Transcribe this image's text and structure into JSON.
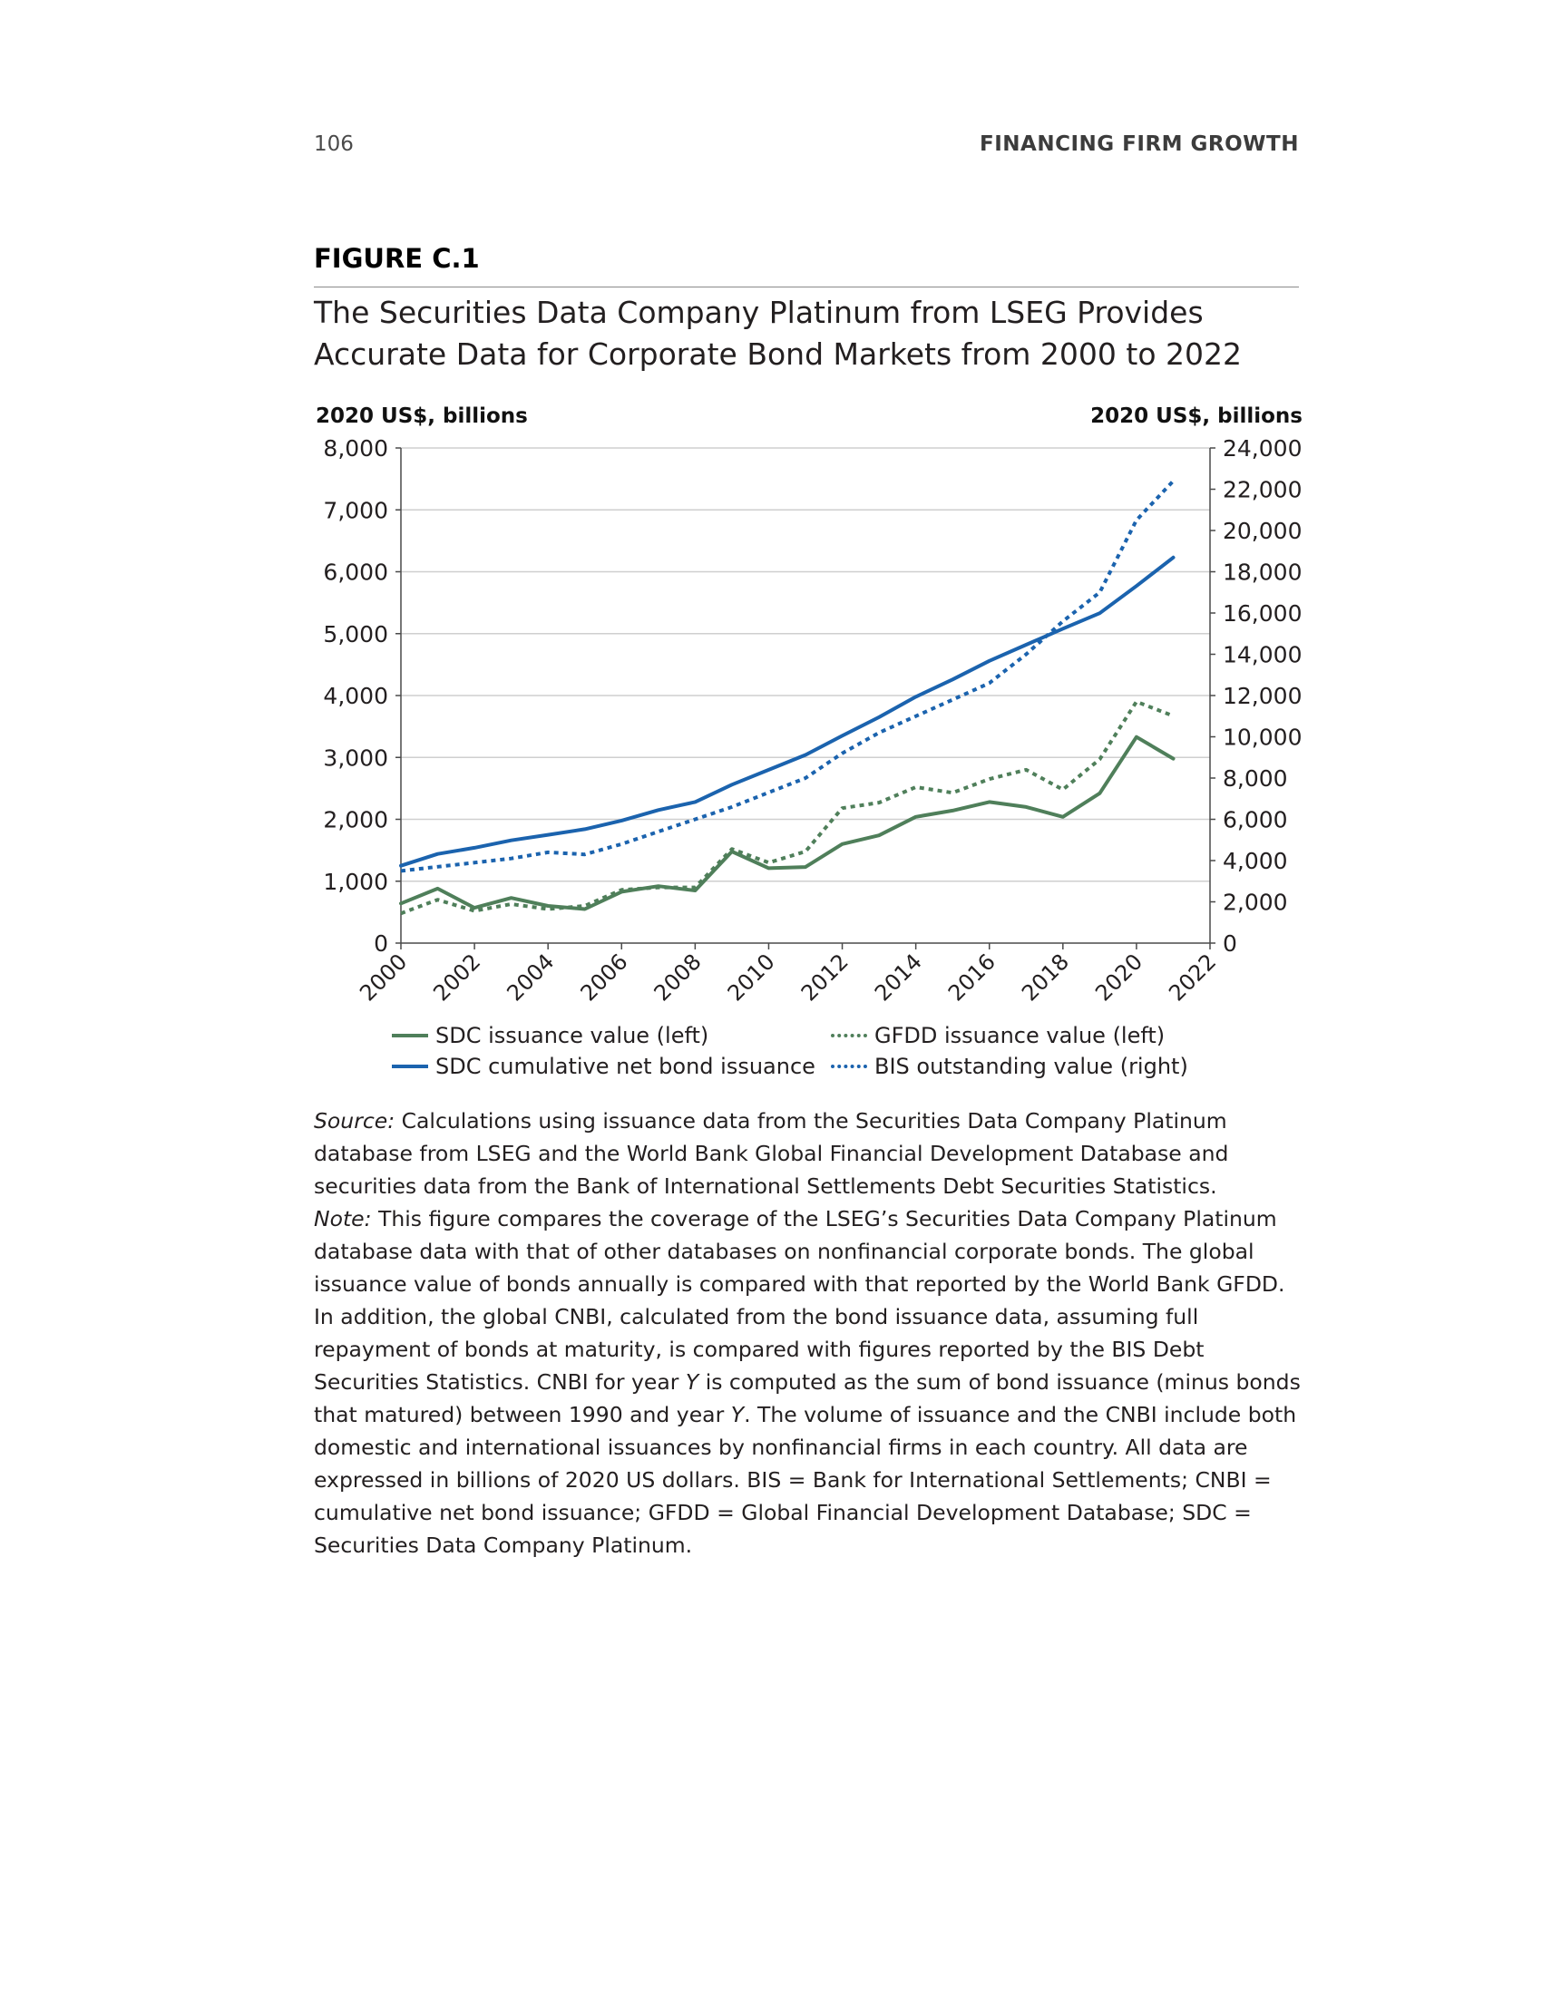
{
  "header": {
    "page_number": "106",
    "running_head": "FINANCING FIRM GROWTH"
  },
  "figure": {
    "label": "FIGURE C.1",
    "title_line1": "The Securities Data Company Platinum from LSEG Provides",
    "title_line2": "Accurate Data for Corporate Bond Markets from 2000 to 2022"
  },
  "colors": {
    "green": "#4f7f5a",
    "blue": "#1b63ae",
    "grid": "#cfcfcf",
    "axis": "#4a4a4a"
  },
  "chart_data": {
    "type": "line",
    "ylabel_left": "2020 US$, billions",
    "ylabel_right": "2020 US$, billions",
    "y_left_lim": [
      0,
      8000
    ],
    "y_right_lim": [
      0,
      24000
    ],
    "y_left_ticks": [
      0,
      1000,
      2000,
      3000,
      4000,
      5000,
      6000,
      7000,
      8000
    ],
    "y_left_tick_labels": [
      "0",
      "1,000",
      "2,000",
      "3,000",
      "4,000",
      "5,000",
      "6,000",
      "7,000",
      "8,000"
    ],
    "y_right_ticks": [
      0,
      2000,
      4000,
      6000,
      8000,
      10000,
      12000,
      14000,
      16000,
      18000,
      20000,
      22000,
      24000
    ],
    "y_right_tick_labels": [
      "0",
      "2,000",
      "4,000",
      "6,000",
      "8,000",
      "10,000",
      "12,000",
      "14,000",
      "16,000",
      "18,000",
      "20,000",
      "22,000",
      "24,000"
    ],
    "x_lim": [
      2000,
      2022
    ],
    "x_ticks": [
      2000,
      2002,
      2004,
      2006,
      2008,
      2010,
      2012,
      2014,
      2016,
      2018,
      2020,
      2022
    ],
    "x_tick_labels": [
      "2000",
      "2002",
      "2004",
      "2006",
      "2008",
      "2010",
      "2012",
      "2014",
      "2016",
      "2018",
      "2020",
      "2022"
    ],
    "grid": "horizontal",
    "legend_position": "bottom",
    "x": [
      2000,
      2001,
      2002,
      2003,
      2004,
      2005,
      2006,
      2007,
      2008,
      2009,
      2010,
      2011,
      2012,
      2013,
      2014,
      2015,
      2016,
      2017,
      2018,
      2019,
      2020,
      2021
    ],
    "series": [
      {
        "name": "SDC issuance value (left)",
        "axis": "left",
        "style": "solid",
        "color": "#4f7f5a",
        "values": [
          640,
          880,
          570,
          730,
          600,
          550,
          830,
          920,
          850,
          1480,
          1210,
          1230,
          1600,
          1740,
          2040,
          2140,
          2280,
          2200,
          2040,
          2420,
          3330,
          2980
        ]
      },
      {
        "name": "GFDD issuance value (left)",
        "axis": "left",
        "style": "dotted",
        "color": "#4f7f5a",
        "values": [
          480,
          700,
          520,
          630,
          550,
          600,
          860,
          900,
          900,
          1520,
          1300,
          1480,
          2180,
          2270,
          2520,
          2430,
          2650,
          2800,
          2480,
          2970,
          3900,
          3670
        ]
      },
      {
        "name": "SDC cumulative net bond issuance",
        "axis": "left",
        "style": "solid",
        "color": "#1b63ae",
        "values": [
          1250,
          1440,
          1540,
          1660,
          1750,
          1840,
          1980,
          2150,
          2280,
          2560,
          2800,
          3040,
          3350,
          3650,
          3980,
          4260,
          4560,
          4820,
          5080,
          5330,
          5770,
          6230
        ]
      },
      {
        "name": "BIS outstanding value (right)",
        "axis": "right",
        "style": "dotted",
        "color": "#1b63ae",
        "values": [
          3500,
          3700,
          3900,
          4100,
          4400,
          4300,
          4800,
          5400,
          6000,
          6600,
          7300,
          8000,
          9200,
          10200,
          11000,
          11800,
          12600,
          14000,
          15600,
          17000,
          20500,
          22400
        ]
      }
    ]
  },
  "legend": [
    {
      "label": "SDC issuance value (left)",
      "style": "solid",
      "color": "#4f7f5a"
    },
    {
      "label": "GFDD issuance value (left)",
      "style": "dotted",
      "color": "#4f7f5a"
    },
    {
      "label": "SDC cumulative net bond issuance",
      "style": "solid",
      "color": "#1b63ae"
    },
    {
      "label": "BIS outstanding value (right)",
      "style": "dotted",
      "color": "#1b63ae"
    }
  ],
  "notes": {
    "source_label": "Source:",
    "source_text": " Calculations using issuance data from the Securities Data Company Platinum database from LSEG and the World Bank Global Financial Development Database and securities data from the Bank of International Settlements Debt Securities Statistics.",
    "note_label": "Note:",
    "note_text_1": " This figure compares the coverage of the LSEG’s Securities Data Company Platinum database data with that of other databases on nonfinancial corporate bonds. The global issuance value of bonds annually is compared with that reported by the World Bank GFDD. In addition, the global CNBI, calculated from the bond issuance data, assuming full repayment of bonds at maturity, is compared with figures reported by the BIS Debt Securities Statistics. CNBI for year ",
    "note_italic_y1": "Y",
    "note_text_2": " is computed as the sum of bond issuance (minus bonds that matured) between 1990 and year ",
    "note_italic_y2": "Y",
    "note_text_3": ". The volume of issuance and the CNBI include both domestic and international issuances by nonfinancial firms in each country. All data are expressed in billions of 2020 US dollars. BIS = Bank for International Settlements; CNBI = cumulative net bond issuance; GFDD = Global Financial Development Database; SDC = Securities Data Company Platinum."
  }
}
